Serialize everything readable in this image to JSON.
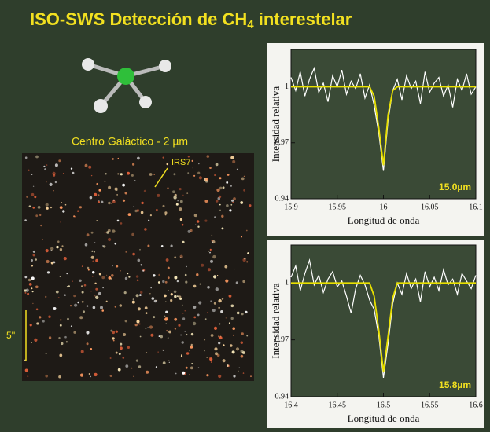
{
  "title": [
    "ISO-SWS Detección de CH",
    "4",
    " interestelar"
  ],
  "image_label": "Centro Galáctico - 2 µm",
  "source_label": "IRS7",
  "scale_label": "5''",
  "chart_data": [
    {
      "type": "line",
      "xlabel": "Longitud de onda",
      "ylabel": "Intensidad relativa",
      "annotation": "15.0µm",
      "x": [
        15.9,
        15.905,
        15.91,
        15.915,
        15.92,
        15.925,
        15.93,
        15.935,
        15.94,
        15.945,
        15.95,
        15.955,
        15.96,
        15.965,
        15.97,
        15.975,
        15.98,
        15.985,
        15.99,
        15.995,
        16,
        16.005,
        16.01,
        16.015,
        16.02,
        16.025,
        16.03,
        16.035,
        16.04,
        16.045,
        16.05,
        16.055,
        16.06,
        16.065,
        16.07,
        16.075,
        16.08,
        16.085,
        16.09,
        16.095,
        16.1
      ],
      "series": [
        {
          "color": "#ffffff",
          "values": [
            1.005,
            0.998,
            1.008,
            0.995,
            1.004,
            1.01,
            0.997,
            1.002,
            0.992,
            1.006,
            1.0,
            1.009,
            0.996,
            1.003,
            0.999,
            1.007,
            0.994,
            1.001,
            0.99,
            0.975,
            0.955,
            0.982,
            0.998,
            1.004,
            0.993,
            1.006,
            0.999,
            1.003,
            0.991,
            1.008,
            0.997,
            1.002,
            1.005,
            0.995,
            1.001,
            0.989,
            1.004,
            0.998,
            1.007,
            0.996,
            1.0
          ]
        },
        {
          "color": "#e8e000",
          "values": [
            1,
            1,
            1,
            1,
            1,
            1,
            1,
            1,
            1,
            1,
            1,
            1,
            1,
            1,
            1,
            1,
            1,
            1,
            0.995,
            0.978,
            0.958,
            0.985,
            0.998,
            1,
            1,
            1,
            1,
            1,
            1,
            1,
            1,
            1,
            1,
            1,
            1,
            1,
            1,
            1,
            1,
            1,
            1
          ]
        }
      ],
      "xlim": [
        15.9,
        16.1
      ],
      "xticks": [
        15.9,
        15.95,
        16,
        16.05,
        16.1
      ],
      "ylim": [
        0.94,
        1.02
      ],
      "yticks": [
        0.94,
        0.97,
        1
      ]
    },
    {
      "type": "line",
      "xlabel": "Longitud de onda",
      "ylabel": "Intensidad relativa",
      "annotation": "15.8µm",
      "x": [
        16.4,
        16.405,
        16.41,
        16.415,
        16.42,
        16.425,
        16.43,
        16.435,
        16.44,
        16.445,
        16.45,
        16.455,
        16.46,
        16.465,
        16.47,
        16.475,
        16.48,
        16.485,
        16.49,
        16.495,
        16.5,
        16.505,
        16.51,
        16.515,
        16.52,
        16.525,
        16.53,
        16.535,
        16.54,
        16.545,
        16.55,
        16.555,
        16.56,
        16.565,
        16.57,
        16.575,
        16.58,
        16.585,
        16.59,
        16.595,
        16.6
      ],
      "series": [
        {
          "color": "#ffffff",
          "values": [
            1.003,
            1.009,
            0.996,
            1.005,
            1.012,
            0.999,
            1.004,
            0.995,
            1.002,
            1.006,
            0.998,
            1.001,
            0.993,
            0.984,
            0.997,
            1.004,
            0.999,
            0.991,
            0.986,
            0.972,
            0.95,
            0.968,
            0.989,
            1.0,
            0.994,
            1.005,
            0.997,
            1.002,
            0.99,
            1.006,
            0.998,
            1.003,
            0.996,
            1.007,
            0.999,
            1.002,
            0.994,
            1.005,
            1.001,
            0.997,
            1.004
          ]
        },
        {
          "color": "#e8e000",
          "values": [
            1,
            1,
            1,
            1,
            1,
            1,
            1,
            1,
            1,
            1,
            1,
            1,
            1,
            1,
            1,
            1,
            1,
            1,
            0.993,
            0.975,
            0.953,
            0.972,
            0.992,
            1,
            1,
            1,
            1,
            1,
            1,
            1,
            1,
            1,
            1,
            1,
            1,
            1,
            1,
            1,
            1,
            1,
            1
          ]
        }
      ],
      "xlim": [
        16.4,
        16.6
      ],
      "xticks": [
        16.4,
        16.45,
        16.5,
        16.55,
        16.6
      ],
      "ylim": [
        0.94,
        1.02
      ],
      "yticks": [
        0.94,
        0.97,
        1
      ]
    }
  ]
}
